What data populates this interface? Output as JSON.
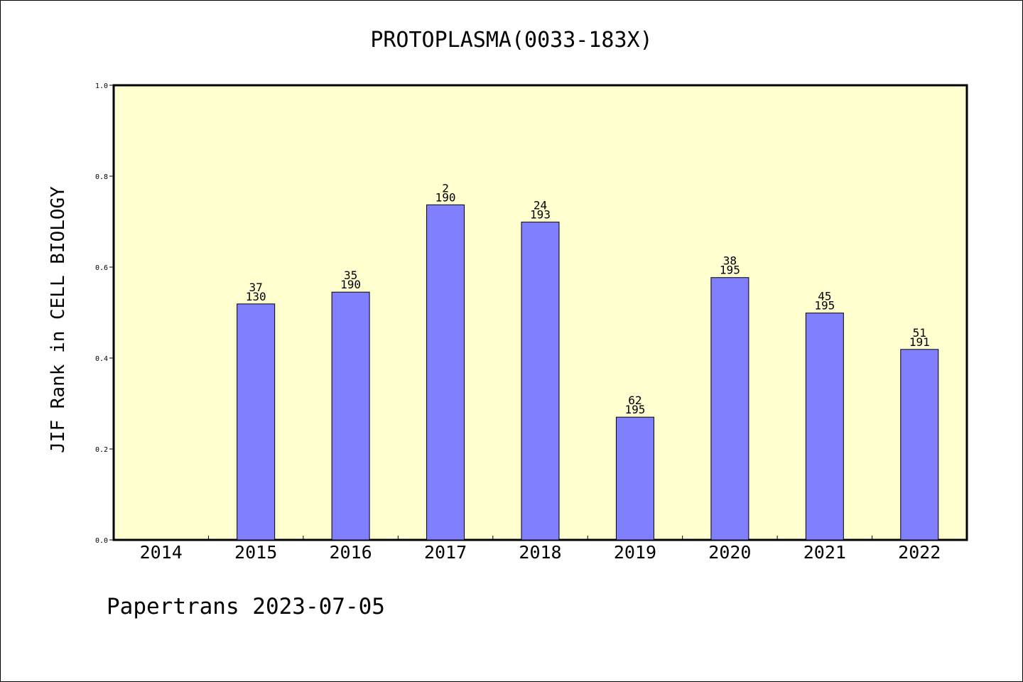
{
  "chart_data": {
    "type": "bar",
    "title": "PROTOPLASMA(0033-183X)",
    "ylabel": "JIF Rank in CELL BIOLOGY",
    "xlabel": "",
    "categories": [
      "2014",
      "2015",
      "2016",
      "2017",
      "2018",
      "2019",
      "2020",
      "2021",
      "2022"
    ],
    "values": [
      null,
      0.519,
      0.545,
      0.737,
      0.699,
      0.27,
      0.577,
      0.499,
      0.419
    ],
    "ranks": [
      null,
      "37",
      "35",
      "2",
      "24",
      "62",
      "38",
      "45",
      "51"
    ],
    "totals": [
      null,
      "130",
      "190",
      "190",
      "193",
      "195",
      "195",
      "195",
      "191"
    ],
    "ylim": [
      0,
      1.0
    ],
    "yticks": [
      "0.0",
      "0.2",
      "0.4",
      "0.6",
      "0.8",
      "1.0"
    ],
    "ytick_values": [
      0,
      0.2,
      0.4,
      0.6,
      0.8,
      1.0
    ],
    "grid": false,
    "legend": "none",
    "colors": {
      "bar": "#8080ff",
      "plot_background": "#ffffd0",
      "axis": "#000000"
    }
  },
  "footer": {
    "text": "Papertrans 2023-07-05"
  }
}
